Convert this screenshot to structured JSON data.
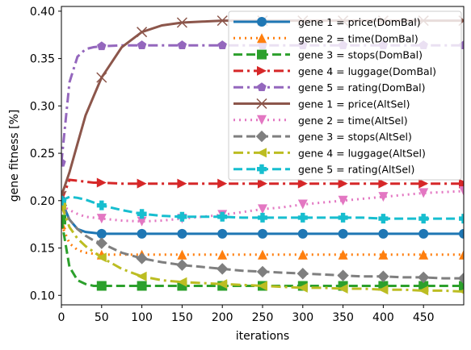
{
  "chart_data": {
    "type": "line",
    "title": "",
    "xlabel": "iterations",
    "ylabel": "gene fitness [%]",
    "xlim": [
      0,
      500
    ],
    "ylim": [
      0.09,
      0.405
    ],
    "xticks": [
      0,
      50,
      100,
      150,
      200,
      250,
      300,
      350,
      400,
      450
    ],
    "yticks": [
      0.1,
      0.15,
      0.2,
      0.25,
      0.3,
      0.35,
      0.4
    ],
    "x": [
      0,
      10,
      20,
      30,
      40,
      50,
      75,
      100,
      125,
      150,
      175,
      200,
      225,
      250,
      275,
      300,
      325,
      350,
      375,
      400,
      425,
      450,
      475,
      500
    ],
    "marker_x": [
      0,
      50,
      100,
      150,
      200,
      250,
      300,
      350,
      400,
      450,
      500
    ],
    "grid": false,
    "legend_position": "top-right",
    "series": [
      {
        "name": "gene 1 = price(DomBal)",
        "color": "#1f77b4",
        "style": "solid",
        "marker": "circle",
        "values": [
          0.2,
          0.18,
          0.17,
          0.167,
          0.166,
          0.165,
          0.165,
          0.165,
          0.165,
          0.165,
          0.165,
          0.165,
          0.165,
          0.165,
          0.165,
          0.165,
          0.165,
          0.165,
          0.165,
          0.165,
          0.165,
          0.165,
          0.165,
          0.165
        ]
      },
      {
        "name": "gene 2 = time(DomBal)",
        "color": "#ff7f0e",
        "style": "dotted",
        "marker": "triangle-up",
        "values": [
          0.175,
          0.155,
          0.148,
          0.145,
          0.144,
          0.143,
          0.143,
          0.143,
          0.143,
          0.143,
          0.143,
          0.143,
          0.143,
          0.143,
          0.143,
          0.143,
          0.143,
          0.143,
          0.143,
          0.143,
          0.143,
          0.143,
          0.143,
          0.143
        ]
      },
      {
        "name": "gene 3 = stops(DomBal)",
        "color": "#2ca02c",
        "style": "dashed",
        "marker": "square",
        "values": [
          0.18,
          0.13,
          0.116,
          0.112,
          0.11,
          0.11,
          0.11,
          0.11,
          0.11,
          0.11,
          0.11,
          0.11,
          0.11,
          0.11,
          0.11,
          0.11,
          0.11,
          0.11,
          0.11,
          0.11,
          0.11,
          0.11,
          0.11,
          0.11
        ]
      },
      {
        "name": "gene 4 = luggage(DomBal)",
        "color": "#d62728",
        "style": "dashdot",
        "marker": "triangle-right",
        "values": [
          0.2,
          0.222,
          0.221,
          0.22,
          0.219,
          0.219,
          0.218,
          0.218,
          0.218,
          0.218,
          0.218,
          0.218,
          0.218,
          0.218,
          0.218,
          0.218,
          0.218,
          0.218,
          0.218,
          0.218,
          0.218,
          0.218,
          0.218,
          0.218
        ]
      },
      {
        "name": "gene 5 = rating(DomBal)",
        "color": "#9467bd",
        "style": "dashdot",
        "marker": "pentagon",
        "values": [
          0.24,
          0.325,
          0.352,
          0.36,
          0.362,
          0.363,
          0.364,
          0.364,
          0.364,
          0.364,
          0.364,
          0.364,
          0.364,
          0.364,
          0.364,
          0.364,
          0.364,
          0.364,
          0.364,
          0.364,
          0.364,
          0.364,
          0.364,
          0.364
        ]
      },
      {
        "name": "gene 1 = price(AltSel)",
        "color": "#8c564b",
        "style": "solid",
        "marker": "x",
        "values": [
          0.205,
          0.23,
          0.26,
          0.29,
          0.31,
          0.33,
          0.362,
          0.378,
          0.385,
          0.388,
          0.389,
          0.39,
          0.39,
          0.39,
          0.39,
          0.39,
          0.39,
          0.39,
          0.39,
          0.39,
          0.39,
          0.39,
          0.39,
          0.39
        ]
      },
      {
        "name": "gene 2 = time(AltSel)",
        "color": "#e377c2",
        "style": "dotted",
        "marker": "triangle-down",
        "values": [
          0.195,
          0.19,
          0.186,
          0.183,
          0.182,
          0.181,
          0.179,
          0.178,
          0.179,
          0.181,
          0.183,
          0.185,
          0.188,
          0.191,
          0.193,
          0.196,
          0.198,
          0.2,
          0.202,
          0.204,
          0.206,
          0.208,
          0.209,
          0.21
        ]
      },
      {
        "name": "gene 3 = stops(AltSel)",
        "color": "#7f7f7f",
        "style": "dashed",
        "marker": "diamond",
        "values": [
          0.195,
          0.18,
          0.17,
          0.163,
          0.158,
          0.155,
          0.145,
          0.139,
          0.135,
          0.132,
          0.13,
          0.128,
          0.126,
          0.125,
          0.124,
          0.123,
          0.122,
          0.121,
          0.12,
          0.12,
          0.119,
          0.119,
          0.118,
          0.118
        ]
      },
      {
        "name": "gene 4 = luggage(AltSel)",
        "color": "#bcbd22",
        "style": "dashdot",
        "marker": "triangle-left",
        "values": [
          0.195,
          0.172,
          0.16,
          0.152,
          0.146,
          0.14,
          0.128,
          0.12,
          0.116,
          0.114,
          0.113,
          0.112,
          0.111,
          0.11,
          0.109,
          0.108,
          0.108,
          0.107,
          0.107,
          0.106,
          0.106,
          0.105,
          0.105,
          0.104
        ]
      },
      {
        "name": "gene 5 = rating(AltSel)",
        "color": "#17becf",
        "style": "dashed",
        "marker": "plus",
        "values": [
          0.2,
          0.204,
          0.203,
          0.201,
          0.198,
          0.195,
          0.19,
          0.186,
          0.184,
          0.183,
          0.183,
          0.183,
          0.182,
          0.182,
          0.182,
          0.182,
          0.182,
          0.182,
          0.182,
          0.181,
          0.181,
          0.181,
          0.181,
          0.181
        ]
      }
    ]
  }
}
